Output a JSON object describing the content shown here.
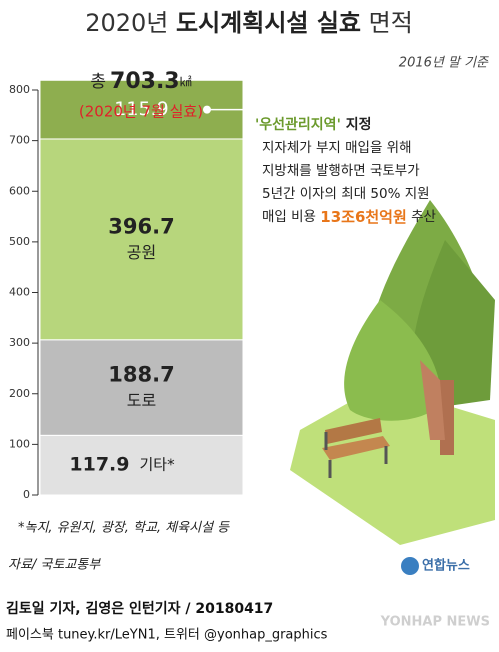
{
  "chart_data": {
    "type": "stacked_bar",
    "title_parts": [
      "2020년 ",
      "도시계획시설 실효",
      " 면적"
    ],
    "subtitle": "2016년 말 기준",
    "total_prefix": "총",
    "total": 703.3,
    "total_unit": "㎢",
    "total_note": "(2020년 7월 실효)",
    "series": [
      {
        "name": "기타*",
        "color": "#e1e1e1",
        "values": [
          117.9
        ]
      },
      {
        "name": "도로",
        "color": "#bcbcbc",
        "values": [
          188.7
        ]
      },
      {
        "name": "공원",
        "color": "#b7d67c",
        "values": [
          396.7
        ]
      },
      {
        "color": "#8eae4f",
        "values": [
          115.9
        ]
      }
    ],
    "ylim": [
      0,
      800
    ],
    "yticks": [
      0,
      100,
      200,
      300,
      400,
      500,
      600,
      700,
      800
    ],
    "annotation": {
      "title_parts": [
        "'우선관리지역'",
        " 지정"
      ],
      "lines": [
        "지자체가 부지 매입을 위해",
        "지방채를 발행하면 국토부가",
        "5년간 이자의 최대 50% 지원"
      ],
      "last_line_parts": [
        "매입 비용 ",
        "13조6천억원",
        " 추산"
      ]
    },
    "footnote": "*녹지, 유원지, 광장, 학교, 체육시설 등",
    "source": "자료/ 국토교통부",
    "logo": "연합뉴스",
    "credits": [
      "김토일 기자, 김영은 인턴기자 / 20180417",
      "페이스북 tuney.kr/LeYN1, 트위터 @yonhap_graphics"
    ],
    "watermark": "YONHAP NEWS"
  }
}
